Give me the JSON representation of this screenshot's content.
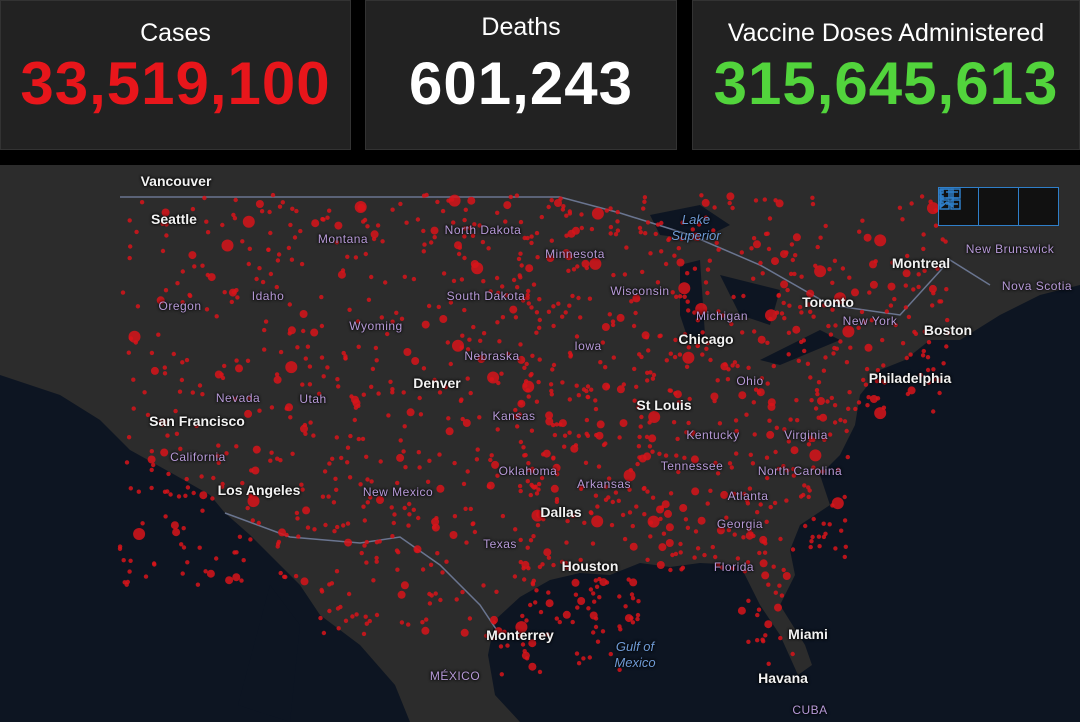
{
  "stats": [
    {
      "label": "Cases",
      "value": "33,519,100",
      "color": "#e8161b"
    },
    {
      "label": "Deaths",
      "value": "601,243",
      "color": "#ffffff"
    },
    {
      "label": "Vaccine Doses Administered",
      "value": "315,645,613",
      "color": "#52d43c"
    }
  ],
  "map": {
    "cities": [
      "Vancouver",
      "Seattle",
      "Montreal",
      "Toronto",
      "Chicago",
      "Philadelphia",
      "Boston",
      "Denver",
      "St Louis",
      "San Francisco",
      "Los Angeles",
      "Dallas",
      "Houston",
      "Monterrey",
      "Miami",
      "Havana"
    ],
    "regions": [
      "Montana",
      "North Dakota",
      "Minnesota",
      "New Brunswick",
      "Nova Scotia",
      "Oregon",
      "Idaho",
      "South Dakota",
      "Wisconsin",
      "Michigan",
      "New York",
      "Wyoming",
      "Nebraska",
      "Iowa",
      "Ohio",
      "Nevada",
      "Utah",
      "Kansas",
      "Kentucky",
      "Virginia",
      "California",
      "Tennessee",
      "Oklahoma",
      "North Carolina",
      "Arkansas",
      "New Mexico",
      "Atlanta",
      "Georgia",
      "Texas",
      "Florida",
      "MÉXICO",
      "CUBA"
    ],
    "water": [
      "Lake Superior",
      "Gulf of Mexico"
    ]
  }
}
